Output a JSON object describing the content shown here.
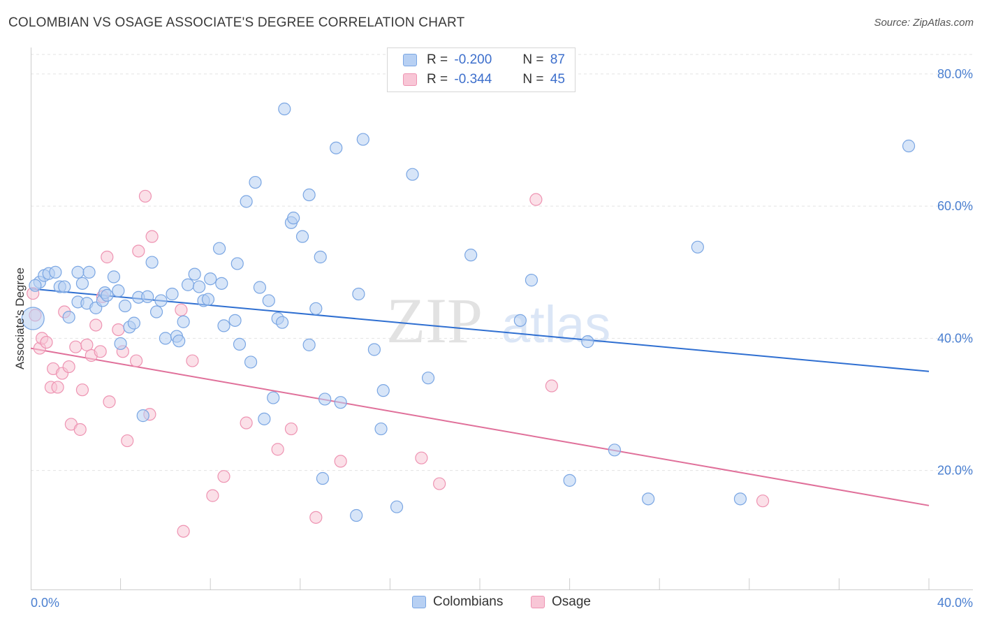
{
  "title": "COLOMBIAN VS OSAGE ASSOCIATE'S DEGREE CORRELATION CHART",
  "source": "Source: ZipAtlas.com",
  "colors": {
    "colombians_fill": "#b7d0f3",
    "colombians_stroke": "#7aa6e3",
    "colombians_line": "#2f6fd1",
    "osage_fill": "#f8c6d6",
    "osage_stroke": "#ee93b2",
    "osage_line": "#e0709a",
    "tick_label": "#4a7fd0"
  },
  "stats": {
    "colombians": {
      "r_label": "R =",
      "r_value": "-0.200",
      "n_label": "N =",
      "n_value": "87"
    },
    "osage": {
      "r_label": "R =",
      "r_value": "-0.344",
      "n_label": "N =",
      "n_value": "45"
    }
  },
  "legend": {
    "colombians": "Colombians",
    "osage": "Osage"
  },
  "watermark": {
    "zip": "ZIP",
    "atlas": "atlas"
  },
  "chart_data": {
    "type": "scatter",
    "ylabel": "Associate's Degree",
    "xlabel": "",
    "xlim": [
      0,
      40
    ],
    "ylim": [
      2,
      84
    ],
    "x_tick_labels": [
      "0.0%",
      "40.0%"
    ],
    "y_ticks": [
      {
        "value": 20,
        "label": "20.0%"
      },
      {
        "value": 40,
        "label": "40.0%"
      },
      {
        "value": 60,
        "label": "60.0%"
      },
      {
        "value": 80,
        "label": "80.0%"
      }
    ],
    "grid": "horizontal dashed",
    "series": [
      {
        "name": "Colombians",
        "trend": {
          "x": [
            0,
            40
          ],
          "y": [
            47.5,
            35.0
          ]
        },
        "points": [
          [
            0.1,
            43.0
          ],
          [
            0.4,
            48.5
          ],
          [
            0.6,
            49.5
          ],
          [
            0.8,
            49.8
          ],
          [
            1.1,
            50.0
          ],
          [
            1.3,
            47.8
          ],
          [
            1.5,
            47.8
          ],
          [
            1.7,
            43.2
          ],
          [
            2.1,
            50.0
          ],
          [
            2.1,
            45.5
          ],
          [
            2.3,
            48.3
          ],
          [
            2.5,
            45.3
          ],
          [
            2.6,
            50.0
          ],
          [
            2.9,
            44.6
          ],
          [
            3.2,
            45.7
          ],
          [
            3.3,
            46.9
          ],
          [
            3.4,
            46.5
          ],
          [
            3.7,
            49.3
          ],
          [
            3.9,
            47.2
          ],
          [
            4.0,
            39.2
          ],
          [
            4.2,
            44.9
          ],
          [
            4.4,
            41.7
          ],
          [
            4.6,
            42.3
          ],
          [
            4.8,
            46.2
          ],
          [
            5.0,
            28.3
          ],
          [
            5.2,
            46.3
          ],
          [
            5.4,
            51.5
          ],
          [
            5.6,
            44.0
          ],
          [
            5.8,
            45.7
          ],
          [
            6.0,
            40.0
          ],
          [
            6.3,
            46.7
          ],
          [
            6.5,
            40.3
          ],
          [
            6.6,
            39.6
          ],
          [
            6.8,
            42.5
          ],
          [
            7.0,
            48.1
          ],
          [
            7.3,
            49.7
          ],
          [
            7.5,
            47.8
          ],
          [
            7.7,
            45.7
          ],
          [
            7.9,
            45.9
          ],
          [
            8.0,
            49.0
          ],
          [
            8.4,
            53.6
          ],
          [
            8.5,
            48.3
          ],
          [
            8.6,
            41.9
          ],
          [
            9.1,
            42.7
          ],
          [
            9.2,
            51.3
          ],
          [
            9.3,
            39.1
          ],
          [
            9.6,
            60.7
          ],
          [
            9.8,
            36.4
          ],
          [
            10.0,
            63.6
          ],
          [
            10.2,
            47.7
          ],
          [
            10.4,
            27.8
          ],
          [
            10.6,
            45.7
          ],
          [
            10.8,
            31.0
          ],
          [
            11.0,
            43.0
          ],
          [
            11.2,
            42.4
          ],
          [
            11.3,
            74.7
          ],
          [
            11.6,
            57.5
          ],
          [
            11.7,
            58.2
          ],
          [
            12.1,
            55.4
          ],
          [
            12.4,
            61.7
          ],
          [
            12.4,
            39.0
          ],
          [
            12.7,
            44.5
          ],
          [
            12.9,
            52.3
          ],
          [
            13.0,
            18.8
          ],
          [
            13.1,
            30.8
          ],
          [
            13.6,
            68.8
          ],
          [
            13.8,
            30.3
          ],
          [
            14.5,
            13.2
          ],
          [
            14.6,
            46.7
          ],
          [
            14.8,
            70.1
          ],
          [
            15.3,
            38.3
          ],
          [
            15.6,
            26.3
          ],
          [
            15.7,
            32.1
          ],
          [
            16.3,
            14.5
          ],
          [
            17.0,
            64.8
          ],
          [
            17.7,
            34.0
          ],
          [
            19.6,
            52.6
          ],
          [
            21.8,
            42.7
          ],
          [
            22.3,
            48.8
          ],
          [
            24.0,
            18.5
          ],
          [
            24.8,
            39.5
          ],
          [
            26.0,
            23.1
          ],
          [
            27.5,
            15.7
          ],
          [
            29.7,
            53.8
          ],
          [
            31.6,
            15.7
          ],
          [
            39.1,
            69.1
          ],
          [
            0.2,
            48.0
          ]
        ]
      },
      {
        "name": "Osage",
        "trend": {
          "x": [
            0,
            40
          ],
          "y": [
            38.5,
            14.7
          ]
        },
        "points": [
          [
            0.1,
            46.8
          ],
          [
            0.2,
            43.5
          ],
          [
            0.4,
            38.5
          ],
          [
            0.5,
            40.0
          ],
          [
            0.7,
            39.4
          ],
          [
            0.9,
            32.6
          ],
          [
            1.0,
            35.4
          ],
          [
            1.2,
            32.6
          ],
          [
            1.4,
            34.7
          ],
          [
            1.5,
            44.0
          ],
          [
            1.7,
            35.7
          ],
          [
            1.8,
            27.0
          ],
          [
            2.0,
            38.7
          ],
          [
            2.2,
            26.2
          ],
          [
            2.3,
            32.2
          ],
          [
            2.5,
            39.0
          ],
          [
            2.7,
            37.4
          ],
          [
            2.9,
            42.0
          ],
          [
            3.1,
            38.0
          ],
          [
            3.2,
            46.3
          ],
          [
            3.4,
            52.3
          ],
          [
            3.5,
            30.4
          ],
          [
            3.9,
            41.3
          ],
          [
            4.1,
            38.0
          ],
          [
            4.3,
            24.5
          ],
          [
            4.7,
            36.6
          ],
          [
            4.8,
            53.2
          ],
          [
            5.1,
            61.5
          ],
          [
            5.3,
            28.5
          ],
          [
            5.4,
            55.4
          ],
          [
            6.8,
            10.8
          ],
          [
            6.7,
            44.3
          ],
          [
            7.2,
            36.6
          ],
          [
            8.1,
            16.2
          ],
          [
            8.6,
            19.1
          ],
          [
            9.6,
            27.2
          ],
          [
            11.0,
            23.2
          ],
          [
            11.6,
            26.3
          ],
          [
            12.7,
            12.9
          ],
          [
            13.8,
            21.4
          ],
          [
            17.4,
            21.9
          ],
          [
            18.2,
            18.0
          ],
          [
            22.5,
            61.0
          ],
          [
            23.2,
            32.8
          ],
          [
            32.6,
            15.4
          ]
        ]
      }
    ]
  }
}
